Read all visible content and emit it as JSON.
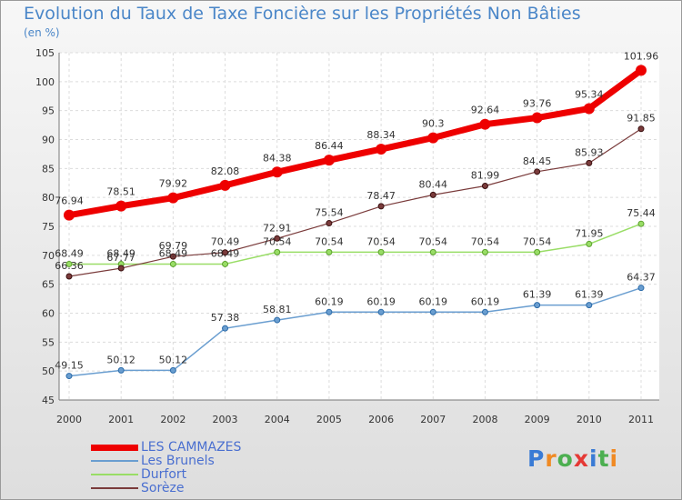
{
  "title": "Evolution du Taux de Taxe Foncière sur les Propriétés Non Bâties",
  "subtitle": "(en %)",
  "logo_text": "Proxiti",
  "colors": {
    "LES CAMMAZES": "#ee0000",
    "Les Brunels": "#6a9ed0",
    "Durfort": "#99dd66",
    "Sorèze": "#7a3b3b",
    "title": "#4a86c8"
  },
  "chart_data": {
    "type": "line",
    "title": "Evolution du Taux de Taxe Foncière sur les Propriétés Non Bâties",
    "ylabel": "(en %)",
    "xlabel": "",
    "categories": [
      "2000",
      "2001",
      "2002",
      "2003",
      "2004",
      "2005",
      "2006",
      "2007",
      "2008",
      "2009",
      "2010",
      "2011"
    ],
    "y_ticks": [
      "45",
      "50",
      "55",
      "60",
      "65",
      "70",
      "75",
      "80",
      "85",
      "90",
      "95",
      "100",
      "105"
    ],
    "ylim": [
      45,
      105
    ],
    "grid": true,
    "legend": "bottom-left",
    "series": [
      {
        "name": "LES CAMMAZES",
        "values": [
          76.94,
          78.51,
          79.92,
          82.08,
          84.38,
          86.44,
          88.34,
          90.3,
          92.64,
          93.76,
          95.34,
          101.96
        ],
        "labels": [
          "76.94",
          "78.51",
          "79.92",
          "82.08",
          "84.38",
          "86.44",
          "88.34",
          "90.3",
          "92.64",
          "93.76",
          "95.34",
          "101.96"
        ]
      },
      {
        "name": "Les Brunels",
        "values": [
          49.15,
          50.12,
          50.12,
          57.38,
          58.81,
          60.19,
          60.19,
          60.19,
          60.19,
          61.39,
          61.39,
          64.37
        ],
        "labels": [
          "49.15",
          "50.12",
          "50.12",
          "57.38",
          "58.81",
          "60.19",
          "60.19",
          "60.19",
          "60.19",
          "61.39",
          "61.39",
          "64.37"
        ]
      },
      {
        "name": "Durfort",
        "values": [
          68.49,
          68.49,
          68.49,
          68.49,
          70.54,
          70.54,
          70.54,
          70.54,
          70.54,
          70.54,
          71.95,
          75.44
        ],
        "labels": [
          "68.49",
          "68.49",
          "68.49",
          "68.49",
          "70.54",
          "70.54",
          "70.54",
          "70.54",
          "70.54",
          "70.54",
          "71.95",
          "75.44"
        ]
      },
      {
        "name": "Sorèze",
        "values": [
          66.36,
          67.77,
          69.79,
          70.49,
          72.91,
          75.54,
          78.47,
          80.44,
          81.99,
          84.45,
          85.93,
          91.85
        ],
        "labels": [
          "66.36",
          "67.77",
          "69.79",
          "70.49",
          "72.91",
          "75.54",
          "78.47",
          "80.44",
          "81.99",
          "84.45",
          "85.93",
          "91.85"
        ]
      }
    ]
  }
}
